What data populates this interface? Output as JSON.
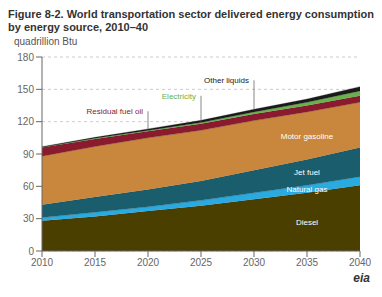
{
  "chart_data": {
    "type": "area",
    "stacked": true,
    "title": "Figure 8-2. World transportation sector delivered energy consumption by energy source, 2010–40",
    "ylabel": "quadrillion Btu",
    "x": [
      2010,
      2015,
      2020,
      2025,
      2030,
      2035,
      2040
    ],
    "series": [
      {
        "name": "Diesel",
        "color": "#4b3f00",
        "values": [
          28,
          32,
          37,
          42,
          48,
          54,
          61
        ]
      },
      {
        "name": "Natural gas",
        "color": "#29abe2",
        "values": [
          3,
          4,
          4,
          5,
          6,
          7,
          8
        ]
      },
      {
        "name": "Jet fuel",
        "color": "#1a5e6e",
        "values": [
          12,
          14,
          16,
          18,
          21,
          24,
          27
        ]
      },
      {
        "name": "Motor gasoline",
        "color": "#c8873c",
        "values": [
          45,
          47,
          48,
          47,
          46,
          44,
          42
        ]
      },
      {
        "name": "Residual fuel oil",
        "color": "#8b1a2e",
        "values": [
          8,
          7,
          6,
          6,
          6,
          6,
          6
        ]
      },
      {
        "name": "Electricity",
        "color": "#6ab04c",
        "values": [
          0.3,
          0.5,
          0.8,
          1.2,
          2.0,
          3.0,
          4.5
        ]
      },
      {
        "name": "Other liquids",
        "color": "#1a1a1a",
        "values": [
          0.5,
          1.0,
          1.5,
          2.0,
          2.5,
          3.0,
          4.0
        ]
      }
    ],
    "xlim": [
      2010,
      2040
    ],
    "xticks": [
      2010,
      2015,
      2020,
      2025,
      2030,
      2035,
      2040
    ],
    "ylim": [
      0,
      180
    ],
    "yticks": [
      0,
      30,
      60,
      90,
      120,
      150,
      180
    ],
    "grid": true,
    "annotations": [
      "eia"
    ]
  }
}
